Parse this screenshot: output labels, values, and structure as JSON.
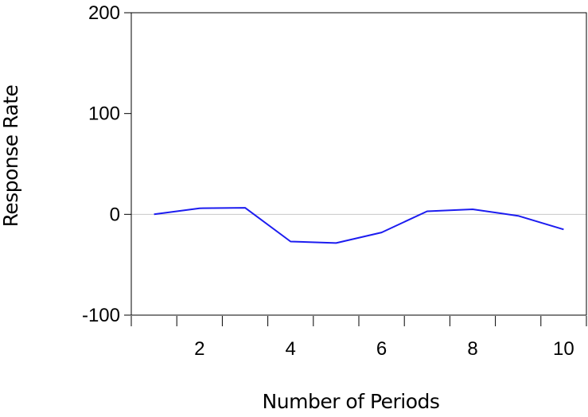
{
  "chart_data": {
    "type": "line",
    "title": "",
    "xlabel": "Number of Periods",
    "ylabel": "Response Rate",
    "x": [
      1,
      2,
      3,
      4,
      5,
      6,
      7,
      8,
      9,
      10
    ],
    "series": [
      {
        "values": [
          0,
          6,
          6.5,
          -27,
          -28.5,
          -18,
          3,
          5,
          -1.5,
          -15
        ]
      }
    ],
    "xlim": [
      0.5,
      10.5
    ],
    "ylim": [
      -100,
      200
    ],
    "xticks": [
      2,
      4,
      6,
      8,
      10
    ],
    "xtick_labels": [
      "2",
      "4",
      "6",
      "8",
      "10"
    ],
    "yticks": [
      -100,
      0,
      100,
      200
    ],
    "ytick_labels": [
      "-100",
      "0",
      "100",
      "200"
    ],
    "zero_line": true,
    "grid": false,
    "colors": {
      "series": "#1c1cf0",
      "zero_line": "#c8c8c8",
      "frame": "#000000"
    }
  }
}
